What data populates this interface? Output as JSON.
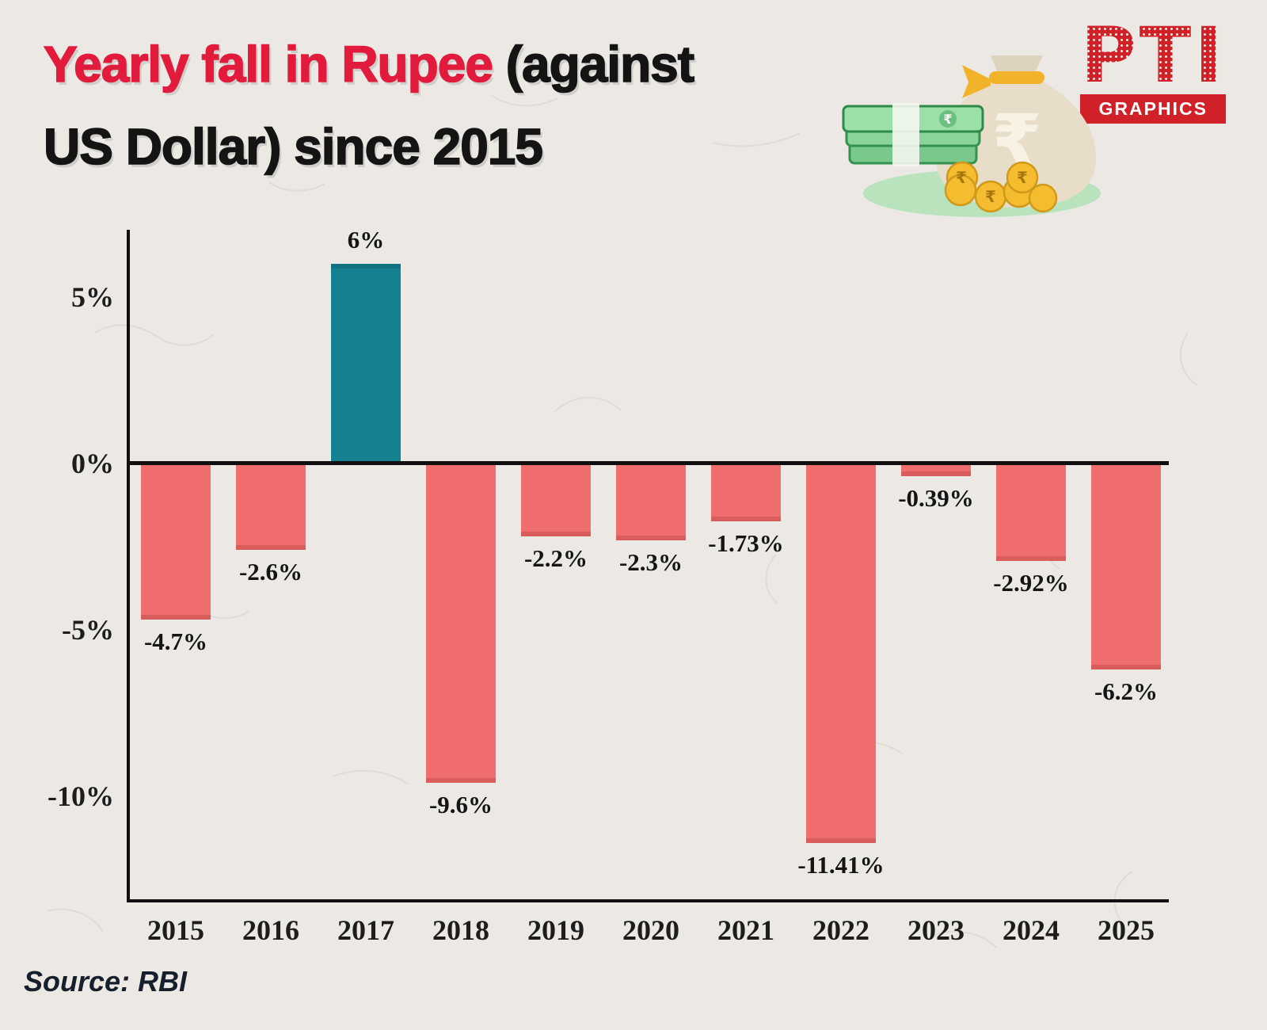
{
  "header": {
    "title_red": "Yearly fall in Rupee",
    "title_black": " (against",
    "title_line2": "US Dollar) since 2015"
  },
  "logo": {
    "name": "PTI",
    "tagline": "GRAPHICS"
  },
  "source": {
    "label": "Source: RBI"
  },
  "colors": {
    "background": "#ece9e5",
    "title_red": "#e21b3d",
    "logo_red": "#cf2127",
    "axis": "#101010"
  },
  "chart_data": {
    "type": "bar",
    "title": "Yearly fall in Rupee (against US Dollar) since 2015",
    "categories": [
      "2015",
      "2016",
      "2017",
      "2018",
      "2019",
      "2020",
      "2021",
      "2022",
      "2023",
      "2024",
      "2025"
    ],
    "values": [
      -4.7,
      -2.6,
      6,
      -9.6,
      -2.2,
      -2.3,
      -1.73,
      -11.41,
      -0.39,
      -2.92,
      -6.2
    ],
    "value_labels": [
      "-4.7%",
      "-2.6%",
      "6%",
      "-9.6%",
      "-2.2%",
      "-2.3%",
      "-1.73%",
      "-11.41%",
      "-0.39%",
      "-2.92%",
      "-6.2%"
    ],
    "unit": "%",
    "ylim": [
      -13,
      7
    ],
    "yticks": [
      {
        "value": 5,
        "label": "5%"
      },
      {
        "value": 0,
        "label": "0%"
      },
      {
        "value": -5,
        "label": "-5%"
      },
      {
        "value": -10,
        "label": "-10%"
      }
    ],
    "grid": false,
    "legend": false,
    "bar_colors": {
      "positive": "#15808f",
      "negative": "#ef6d6d"
    },
    "source": "RBI"
  }
}
